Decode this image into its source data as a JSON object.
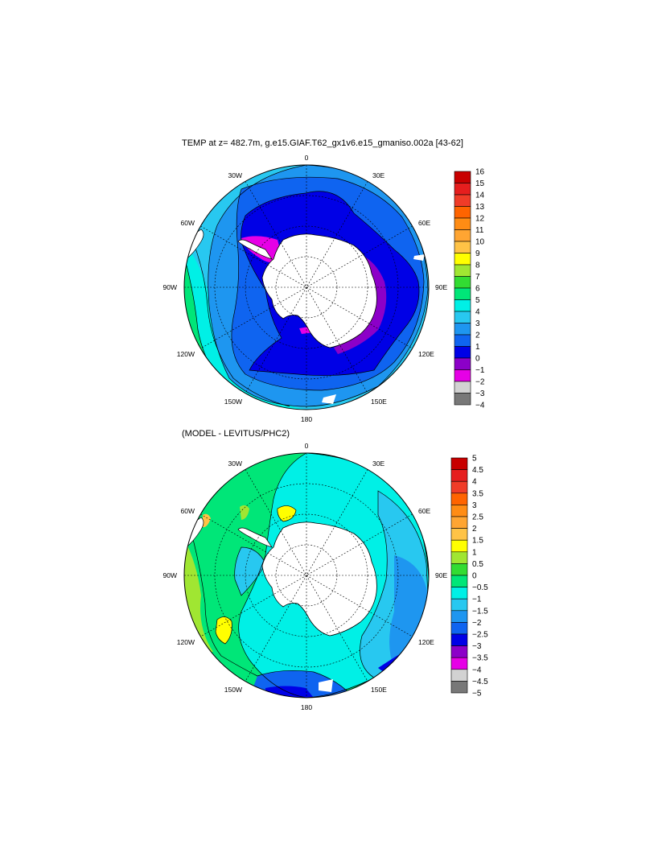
{
  "panel1": {
    "title": "TEMP at z= 482.7m, g.e15.GIAF.T62_gx1v6.e15_gmaniso.002a [43-62]",
    "lon_labels": [
      "0",
      "30E",
      "60E",
      "90E",
      "120E",
      "150E",
      "180",
      "150W",
      "120W",
      "90W",
      "60W",
      "30W"
    ],
    "colorbar_labels": [
      "16",
      "15",
      "14",
      "13",
      "12",
      "11",
      "10",
      "9",
      "8",
      "7",
      "6",
      "5",
      "4",
      "3",
      "2",
      "1",
      "0",
      "−1",
      "−2",
      "−3",
      "−4"
    ],
    "colorbar_colors": [
      "#c80000",
      "#e61e1e",
      "#f03c28",
      "#ff6400",
      "#ff8c14",
      "#ffa532",
      "#ffc346",
      "#ffff00",
      "#a0e632",
      "#32dc32",
      "#00e678",
      "#00f0e6",
      "#28c8f0",
      "#1e96f0",
      "#0f64f0",
      "#0000e6",
      "#8c00c8",
      "#e600e6",
      "#d2d2d2",
      "#787878"
    ]
  },
  "panel2": {
    "title": "(MODEL - LEVITUS/PHC2)",
    "lon_labels": [
      "0",
      "30E",
      "60E",
      "90E",
      "120E",
      "150E",
      "180",
      "150W",
      "120W",
      "90W",
      "60W",
      "30W"
    ],
    "colorbar_labels": [
      "5",
      "4.5",
      "4",
      "3.5",
      "3",
      "2.5",
      "2",
      "1.5",
      "1",
      "0.5",
      "0",
      "−0.5",
      "−1",
      "−1.5",
      "−2",
      "−2.5",
      "−3",
      "−3.5",
      "−4",
      "−4.5",
      "−5"
    ],
    "colorbar_colors": [
      "#c80000",
      "#e61e1e",
      "#f03c28",
      "#ff6400",
      "#ff8c14",
      "#ffa532",
      "#ffc346",
      "#ffff00",
      "#a0e632",
      "#32dc32",
      "#00e678",
      "#00f0e6",
      "#28c8f0",
      "#1e96f0",
      "#0f64f0",
      "#0000e6",
      "#8c00c8",
      "#e600e6",
      "#d2d2d2",
      "#787878"
    ]
  }
}
